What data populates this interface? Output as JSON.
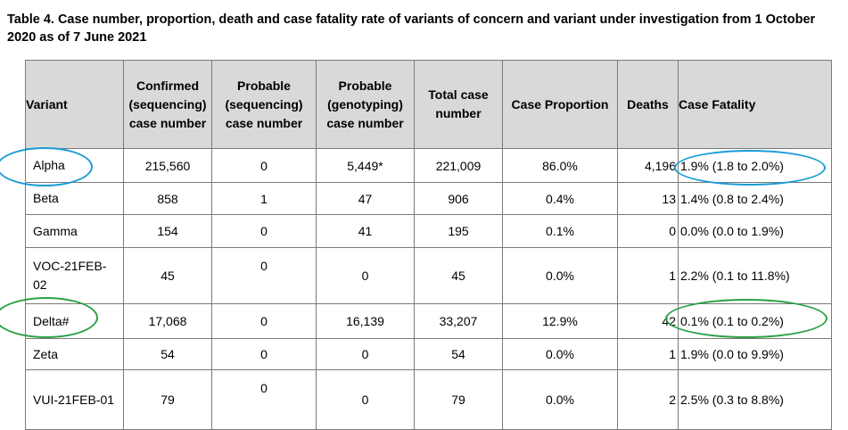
{
  "title": "Table 4. Case number, proportion, death and case fatality rate of variants of concern and variant under investigation from 1 October 2020 as of 7 June 2021",
  "headers": {
    "variant": "Variant",
    "confirmed": "Confirmed (sequencing) case number",
    "probable_seq": "Probable (sequencing) case number",
    "probable_geno": "Probable (genotyping) case number",
    "total": "Total case number",
    "proportion": "Case Proportion",
    "deaths": "Deaths",
    "cfr": "Case Fatality"
  },
  "rows": [
    {
      "variant": "Alpha",
      "confirmed": "215,560",
      "probable_seq": "0",
      "probable_geno": "5,449*",
      "total": "221,009",
      "proportion": "86.0%",
      "deaths": "4,196",
      "cfr": "1.9% (1.8 to 2.0%)"
    },
    {
      "variant": "Beta",
      "confirmed": "858",
      "probable_seq": "1",
      "probable_geno": "47",
      "total": "906",
      "proportion": "0.4%",
      "deaths": "13",
      "cfr": "1.4% (0.8 to 2.4%)"
    },
    {
      "variant": "Gamma",
      "confirmed": "154",
      "probable_seq": "0",
      "probable_geno": "41",
      "total": "195",
      "proportion": "0.1%",
      "deaths": "0",
      "cfr": "0.0% (0.0 to 1.9%)"
    },
    {
      "variant": "VOC-21FEB-02",
      "confirmed": "45",
      "probable_seq": "0",
      "probable_geno": "0",
      "total": "45",
      "proportion": "0.0%",
      "deaths": "1",
      "cfr": "2.2% (0.1 to 11.8%)"
    },
    {
      "variant": "Delta#",
      "confirmed": "17,068",
      "probable_seq": "0",
      "probable_geno": "16,139",
      "total": "33,207",
      "proportion": "12.9%",
      "deaths": "42",
      "cfr": "0.1% (0.1 to 0.2%)"
    },
    {
      "variant": "Zeta",
      "confirmed": "54",
      "probable_seq": "0",
      "probable_geno": "0",
      "total": "54",
      "proportion": "0.0%",
      "deaths": "1",
      "cfr": "1.9% (0.0 to 9.9%)"
    },
    {
      "variant": "VUI-21FEB-01",
      "confirmed": "79",
      "probable_seq": "0",
      "probable_geno": "0",
      "total": "79",
      "proportion": "0.0%",
      "deaths": "2",
      "cfr": "2.5% (0.3 to 8.8%)"
    }
  ],
  "annotation_colors": {
    "alpha": "#1a9bd7",
    "delta": "#2aa043"
  }
}
